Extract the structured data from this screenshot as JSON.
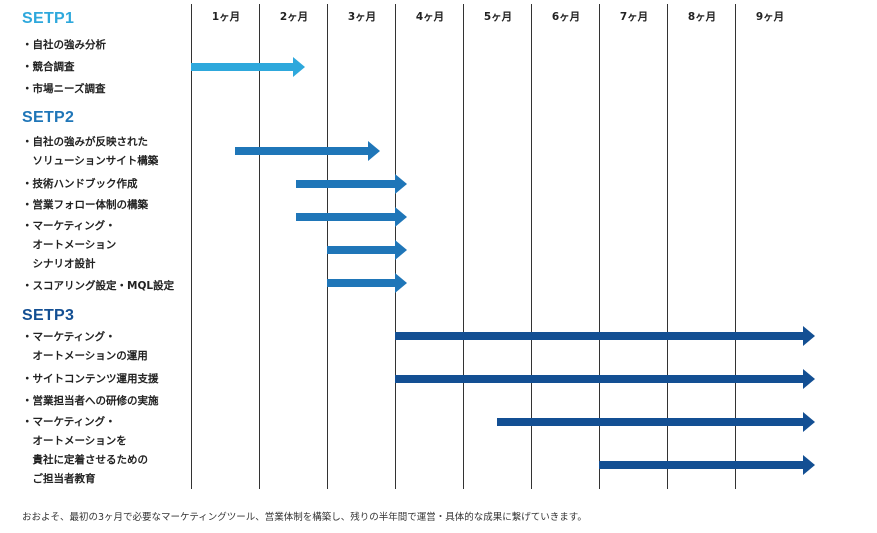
{
  "months": [
    "1ヶ月",
    "2ヶ月",
    "3ヶ月",
    "4ヶ月",
    "5ヶ月",
    "6ヶ月",
    "7ヶ月",
    "8ヶ月",
    "9ヶ月"
  ],
  "steps": [
    {
      "title": "SETP1",
      "color": "#2ea8dc",
      "tasks": [
        {
          "lines": [
            "・自社の強み分析"
          ]
        },
        {
          "lines": [
            "・競合調査"
          ]
        },
        {
          "lines": [
            "・市場ニーズ調査"
          ]
        }
      ]
    },
    {
      "title": "SETP2",
      "color": "#1f76b8",
      "tasks": [
        {
          "lines": [
            "・自社の強みが反映された",
            "　ソリューションサイト構築"
          ]
        },
        {
          "lines": [
            "・技術ハンドブック作成"
          ]
        },
        {
          "lines": [
            "・営業フォロー体制の構築"
          ]
        },
        {
          "lines": [
            "・マーケティング・",
            "　オートメーション",
            "　シナリオ設計"
          ]
        },
        {
          "lines": [
            "・スコアリング設定・MQL設定"
          ]
        }
      ]
    },
    {
      "title": "SETP3",
      "color": "#134f93",
      "tasks": [
        {
          "lines": [
            "・マーケティング・",
            "　オートメーションの運用"
          ]
        },
        {
          "lines": [
            "・サイトコンテンツ運用支援"
          ]
        },
        {
          "lines": [
            "・営業担当者への研修の実施"
          ]
        },
        {
          "lines": [
            "・マーケティング・",
            "　オートメーションを",
            "　貴社に定着させるための",
            "　ご担当者教育"
          ]
        }
      ]
    }
  ],
  "schedule": [
    {
      "task": "・競合調査",
      "start_month": 0,
      "end_month": 1.5,
      "color": "#2ea8dc"
    },
    {
      "task": "・自社の強みが反映された ソリューションサイト構築",
      "start_month": 0.65,
      "end_month": 2.6,
      "color": "#1f76b8"
    },
    {
      "task": "・技術ハンドブック作成",
      "start_month": 1.55,
      "end_month": 3.0,
      "color": "#1f76b8"
    },
    {
      "task": "・営業フォロー体制の構築",
      "start_month": 1.55,
      "end_month": 3.0,
      "color": "#1f76b8"
    },
    {
      "task": "・マーケティング・オートメーション シナリオ設計",
      "start_month": 2.0,
      "end_month": 3.0,
      "color": "#1f76b8"
    },
    {
      "task": "・スコアリング設定・MQL設定",
      "start_month": 2.0,
      "end_month": 3.0,
      "color": "#1f76b8"
    },
    {
      "task": "・マーケティング・オートメーションの運用",
      "start_month": 3.0,
      "end_month": 9.0,
      "color": "#134f93"
    },
    {
      "task": "・サイトコンテンツ運用支援",
      "start_month": 3.0,
      "end_month": 9.0,
      "color": "#134f93"
    },
    {
      "task": "・マーケティング・オートメーションを…ご担当者教育",
      "start_month": 4.5,
      "end_month": 9.0,
      "color": "#134f93"
    },
    {
      "task": "・マーケティング・オートメーションを…ご担当者教育",
      "start_month": 6.0,
      "end_month": 9.0,
      "color": "#134f93"
    }
  ],
  "footnote": "おおよそ、最初の3ヶ月で必要なマーケティングツール、営業体制を構築し、残りの半年間で運営・具体的な成果に繋げていきます。"
}
